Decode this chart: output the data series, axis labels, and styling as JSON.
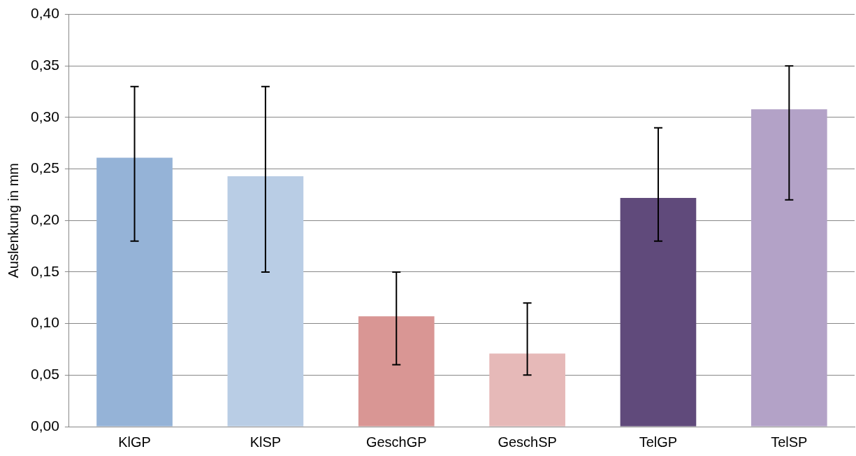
{
  "chart_data": {
    "type": "bar",
    "ylabel": "Auslenkung in mm",
    "categories": [
      "KlGP",
      "KlSP",
      "GeschGP",
      "GeschSP",
      "TelGP",
      "TelSP"
    ],
    "values": [
      0.261,
      0.243,
      0.107,
      0.071,
      0.222,
      0.308
    ],
    "colors": [
      "#95b3d7",
      "#b9cde5",
      "#d99694",
      "#e6b9b8",
      "#604a7b",
      "#b3a2c7"
    ],
    "errors": [
      [
        0.18,
        0.33
      ],
      [
        0.15,
        0.33
      ],
      [
        0.06,
        0.15
      ],
      [
        0.05,
        0.12
      ],
      [
        0.18,
        0.29
      ],
      [
        0.22,
        0.35
      ]
    ],
    "ylim": [
      0,
      0.4
    ],
    "yticks": [
      {
        "value": 0,
        "label": "0,00"
      },
      {
        "value": 0.05,
        "label": "0,05"
      },
      {
        "value": 0.1,
        "label": "0,10"
      },
      {
        "value": 0.15,
        "label": "0,15"
      },
      {
        "value": 0.2,
        "label": "0,20"
      },
      {
        "value": 0.25,
        "label": "0,25"
      },
      {
        "value": 0.3,
        "label": "0,30"
      },
      {
        "value": 0.35,
        "label": "0,35"
      },
      {
        "value": 0.4,
        "label": "0,40"
      }
    ],
    "grid": "y",
    "legend": false
  }
}
